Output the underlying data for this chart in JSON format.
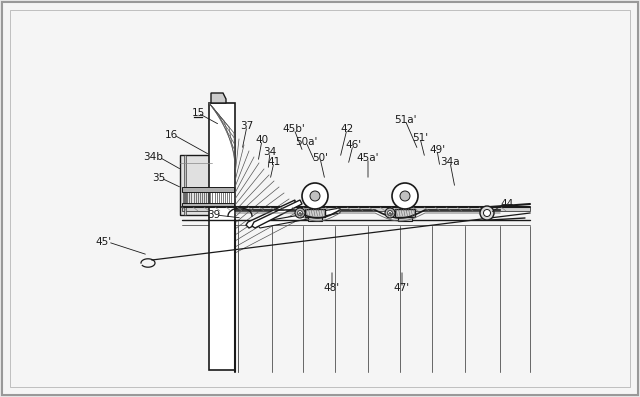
{
  "bg_color": "#e8e8e8",
  "drawing_bg": "#f5f5f5",
  "line_color": "#1a1a1a",
  "labels_data": [
    [
      "15",
      198,
      113,
      220,
      125,
      "center",
      true
    ],
    [
      "16",
      178,
      135,
      210,
      155,
      "right",
      false
    ],
    [
      "37",
      247,
      126,
      242,
      150,
      "center",
      false
    ],
    [
      "40",
      262,
      140,
      258,
      162,
      "center",
      false
    ],
    [
      "45b'",
      294,
      129,
      303,
      152,
      "center",
      false
    ],
    [
      "42",
      347,
      129,
      340,
      158,
      "center",
      false
    ],
    [
      "51a'",
      405,
      120,
      418,
      150,
      "center",
      false
    ],
    [
      "34b",
      163,
      157,
      182,
      170,
      "right",
      false
    ],
    [
      "34",
      270,
      152,
      268,
      170,
      "center",
      false
    ],
    [
      "50a'",
      306,
      142,
      315,
      162,
      "center",
      false
    ],
    [
      "46'",
      353,
      145,
      348,
      165,
      "center",
      false
    ],
    [
      "51'",
      420,
      138,
      425,
      158,
      "center",
      false
    ],
    [
      "49'",
      437,
      150,
      440,
      167,
      "center",
      false
    ],
    [
      "35",
      165,
      178,
      182,
      188,
      "right",
      false
    ],
    [
      "41",
      274,
      162,
      270,
      180,
      "center",
      false
    ],
    [
      "50'",
      320,
      158,
      325,
      180,
      "center",
      false
    ],
    [
      "45a'",
      368,
      158,
      368,
      180,
      "center",
      false
    ],
    [
      "34a",
      450,
      162,
      455,
      188,
      "center",
      false
    ],
    [
      "39",
      220,
      215,
      242,
      218,
      "right",
      false
    ],
    [
      "44",
      500,
      204,
      490,
      213,
      "left",
      false
    ],
    [
      "45'",
      112,
      242,
      148,
      255,
      "right",
      false
    ],
    [
      "48'",
      332,
      288,
      332,
      270,
      "center",
      false
    ],
    [
      "47'",
      402,
      288,
      402,
      270,
      "center",
      false
    ]
  ]
}
